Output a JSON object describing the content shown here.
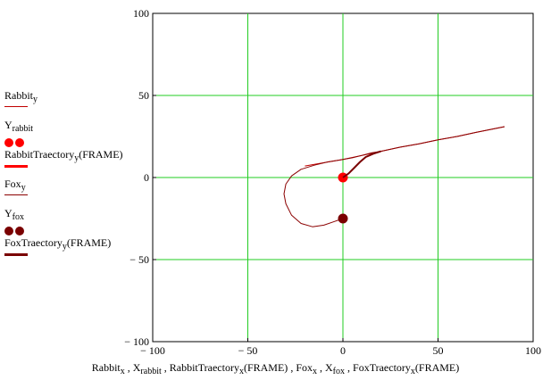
{
  "chart_data": {
    "type": "line",
    "title": "",
    "xlabel_parts": [
      {
        "base": "Rabbit",
        "sub": "x"
      },
      {
        "base": "X",
        "sub": "rabbit"
      },
      {
        "base": "RabbitTraectory",
        "sub": "x",
        "suffix": "(FRAME)"
      },
      {
        "base": "Fox",
        "sub": "x"
      },
      {
        "base": "X",
        "sub": "fox"
      },
      {
        "base": "FoxTraectory",
        "sub": "x",
        "suffix": "(FRAME)"
      }
    ],
    "xlim": [
      -100,
      100
    ],
    "ylim": [
      -100,
      100
    ],
    "x_ticks": [
      -100,
      -50,
      0,
      50,
      100
    ],
    "y_ticks": [
      -100,
      -50,
      0,
      50,
      100
    ],
    "x_tick_labels": [
      "− 100",
      "− 50",
      "0",
      "50",
      "100"
    ],
    "y_tick_labels": [
      "− 100",
      "− 50",
      "0",
      "50",
      "100"
    ],
    "grid": true,
    "grid_color": "#22cc22",
    "legend_position": "left",
    "series": [
      {
        "legend_base": "Rabbit",
        "legend_sub": "y",
        "legend_suffix": "",
        "style": "line",
        "color": "#c00000",
        "width": 1,
        "points": [
          [
            -20,
            7
          ],
          [
            -10,
            9
          ],
          [
            0,
            11
          ],
          [
            10,
            13.5
          ],
          [
            20,
            16
          ],
          [
            30,
            18.5
          ],
          [
            40,
            20.5
          ],
          [
            50,
            23
          ],
          [
            60,
            25
          ],
          [
            70,
            27.5
          ],
          [
            85,
            31
          ]
        ]
      },
      {
        "legend_base": "Y",
        "legend_sub": "rabbit",
        "legend_suffix": "",
        "style": "dot",
        "color": "#ff0000",
        "points": [
          [
            0,
            0
          ]
        ]
      },
      {
        "legend_base": "RabbitTraectory",
        "legend_sub": "y",
        "legend_suffix": "(FRAME)",
        "style": "line",
        "color": "#ff0000",
        "width": 2,
        "points": []
      },
      {
        "legend_base": "Fox",
        "legend_sub": "y",
        "legend_suffix": "",
        "style": "line",
        "color": "#8b0000",
        "width": 1,
        "points": [
          [
            0,
            -25
          ],
          [
            -5,
            -27
          ],
          [
            -10,
            -29
          ],
          [
            -16,
            -30
          ],
          [
            -22,
            -28
          ],
          [
            -27,
            -23
          ],
          [
            -30,
            -16
          ],
          [
            -31,
            -10
          ],
          [
            -30,
            -4
          ],
          [
            -27,
            1
          ],
          [
            -22,
            5
          ],
          [
            -15,
            7.5
          ],
          [
            -8,
            9.5
          ],
          [
            0,
            11
          ],
          [
            5,
            12
          ],
          [
            10,
            13.5
          ],
          [
            15,
            15
          ],
          [
            20,
            16
          ],
          [
            30,
            18.5
          ],
          [
            40,
            20.5
          ],
          [
            50,
            23
          ],
          [
            60,
            25
          ],
          [
            70,
            27.5
          ],
          [
            85,
            31
          ]
        ]
      },
      {
        "legend_base": "Y",
        "legend_sub": "fox",
        "legend_suffix": "",
        "style": "dot",
        "color": "#7a0000",
        "points": [
          [
            0,
            -25
          ]
        ]
      },
      {
        "legend_base": "FoxTraectory",
        "legend_sub": "y",
        "legend_suffix": "(FRAME)",
        "style": "line",
        "color": "#7a0000",
        "width": 2,
        "points": [
          [
            0,
            0
          ],
          [
            3,
            2.5
          ],
          [
            6,
            6
          ],
          [
            9,
            9.5
          ],
          [
            12,
            12.5
          ],
          [
            16,
            14.5
          ],
          [
            20,
            16
          ]
        ]
      }
    ]
  }
}
